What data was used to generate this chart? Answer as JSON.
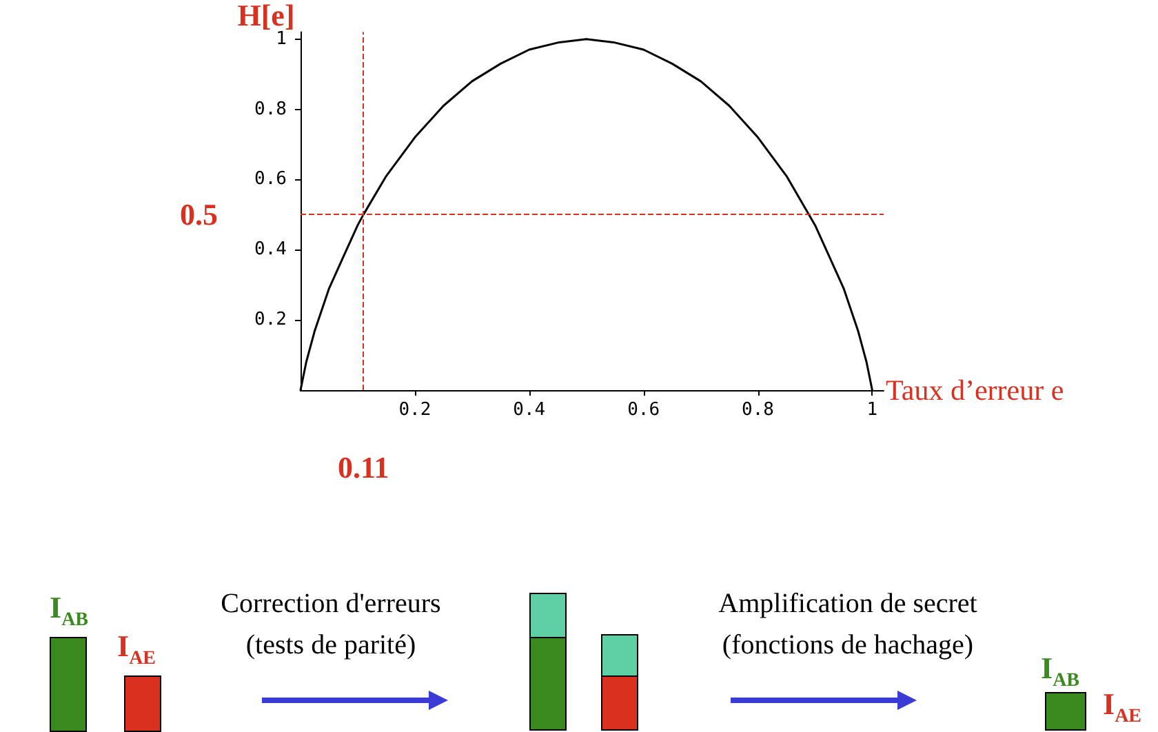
{
  "chart_data": [
    {
      "type": "line",
      "xlabel": "Taux d’erreur e",
      "ylabel": "H[e]",
      "x": [
        0,
        0.01,
        0.025,
        0.05,
        0.075,
        0.1,
        0.11,
        0.15,
        0.2,
        0.25,
        0.3,
        0.35,
        0.4,
        0.45,
        0.5,
        0.55,
        0.6,
        0.65,
        0.7,
        0.75,
        0.8,
        0.85,
        0.9,
        0.925,
        0.95,
        0.975,
        0.99,
        1
      ],
      "series": [
        {
          "color": "#000000",
          "values": [
            0,
            0.08,
            0.17,
            0.29,
            0.38,
            0.47,
            0.5,
            0.61,
            0.72,
            0.81,
            0.88,
            0.93,
            0.97,
            0.99,
            1,
            0.99,
            0.97,
            0.93,
            0.88,
            0.81,
            0.72,
            0.61,
            0.47,
            0.38,
            0.29,
            0.17,
            0.08,
            0
          ]
        }
      ],
      "xlim": [
        0,
        1.02
      ],
      "ylim": [
        0,
        1.02
      ],
      "xticks": [
        0.2,
        0.4,
        0.6,
        0.8,
        1
      ],
      "yticks": [
        0.2,
        0.4,
        0.6,
        0.8,
        1
      ],
      "grid": false,
      "marker": "none",
      "line_style": "solid",
      "ref_lines": [
        {
          "axis": "y",
          "value": 0.5,
          "label": "0.5",
          "color": "#d9301f",
          "line_style": "dashed"
        },
        {
          "axis": "x",
          "value": 0.11,
          "label": "0.11",
          "color": "#d9301f",
          "line_style": "dashed"
        }
      ]
    },
    {
      "type": "other",
      "annotations": [
        "I$_{AB}$",
        "I$_{AE}$",
        "Correction d'erreurs",
        "(tests de parité)",
        "Amplification de secret",
        "(fonctions de hachage)",
        "I$_{AB}$",
        "I$_{AE}$"
      ]
    }
  ]
}
